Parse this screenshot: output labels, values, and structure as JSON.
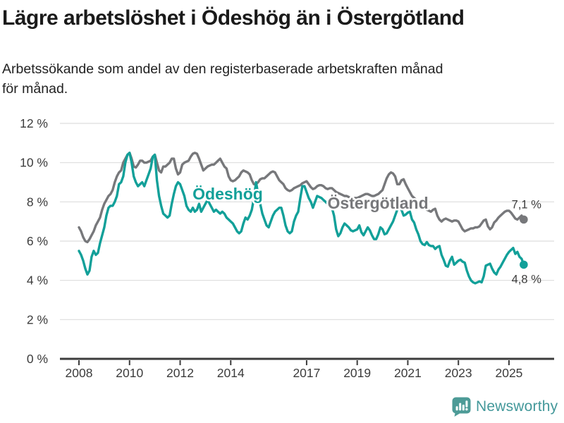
{
  "header": {
    "title": "Lägre arbetslöshet i Ödeshög än i Östergötland",
    "subtitle": "Arbetssökande som andel av den registerbaserade arbetskraften månad för månad."
  },
  "footer": {
    "brand": "Newsworthy",
    "brand_color": "#43989a",
    "logo_icon": "newsworthy-speech-bubble-bar-chart-icon"
  },
  "chart_data": {
    "type": "line",
    "title": "Lägre arbetslöshet i Ödeshög än i Östergötland",
    "subtitle": "Arbetssökande som andel av den registerbaserade arbetskraften månad för månad.",
    "unit": "%",
    "frequency": "monthly",
    "x_start_year": 2008,
    "x_start_month": 1,
    "x_end_label": "aug 2025",
    "grid": true,
    "ylim": [
      0,
      12
    ],
    "y_ticks": [
      0,
      2,
      4,
      6,
      8,
      10,
      12
    ],
    "y_tick_suffix": " %",
    "x_tick_years": [
      2008,
      2010,
      2012,
      2014,
      2017,
      2019,
      2021,
      2023,
      2025
    ],
    "colors": {
      "grid": "#dddddd",
      "axis": "#3c3c3c",
      "tick_text": "#3c3c3c",
      "value_label_text": "#3c3c3c"
    },
    "series": [
      {
        "name": "Östergötland",
        "slug": "ostergotland",
        "color": "#77787b",
        "end_label": "7,1 %",
        "final_value": 7.1,
        "end_label_position": "above",
        "values": [
          6.7,
          6.5,
          6.2,
          6.0,
          5.95,
          6.1,
          6.3,
          6.5,
          6.8,
          7.0,
          7.2,
          7.6,
          7.9,
          8.1,
          8.3,
          8.4,
          8.6,
          9.0,
          9.3,
          9.5,
          9.6,
          10.0,
          10.2,
          10.4,
          10.5,
          10.2,
          9.8,
          9.75,
          9.9,
          10.1,
          10.1,
          10.0,
          10.0,
          10.05,
          10.1,
          10.3,
          10.4,
          10.0,
          9.6,
          9.5,
          9.8,
          9.8,
          9.9,
          10.0,
          10.2,
          10.2,
          9.7,
          9.4,
          9.5,
          9.9,
          10.0,
          10.05,
          10.1,
          10.3,
          10.45,
          10.5,
          10.45,
          10.2,
          9.9,
          9.6,
          9.7,
          9.8,
          9.85,
          9.9,
          9.9,
          10.0,
          10.1,
          10.2,
          10.0,
          9.8,
          9.7,
          9.3,
          9.1,
          9.05,
          9.1,
          9.2,
          9.3,
          9.5,
          9.6,
          9.55,
          9.5,
          9.4,
          9.1,
          8.9,
          8.9,
          9.0,
          9.15,
          9.2,
          9.2,
          9.3,
          9.4,
          9.5,
          9.55,
          9.5,
          9.3,
          9.1,
          9.0,
          8.9,
          8.7,
          8.6,
          8.55,
          8.6,
          8.7,
          8.75,
          8.8,
          8.85,
          8.95,
          9.0,
          9.05,
          8.9,
          8.75,
          8.65,
          8.7,
          8.8,
          8.85,
          8.85,
          8.8,
          8.7,
          8.65,
          8.7,
          8.7,
          8.6,
          8.5,
          8.45,
          8.4,
          8.35,
          8.3,
          8.3,
          8.25,
          8.2,
          8.2,
          8.2,
          8.2,
          8.25,
          8.3,
          8.35,
          8.4,
          8.4,
          8.35,
          8.3,
          8.3,
          8.35,
          8.4,
          8.5,
          8.6,
          8.9,
          9.2,
          9.4,
          9.5,
          9.45,
          9.3,
          8.9,
          8.9,
          9.1,
          9.15,
          8.9,
          8.7,
          8.5,
          8.3,
          8.2,
          8.1,
          8.0,
          7.9,
          7.8,
          7.7,
          7.6,
          7.55,
          7.5,
          7.6,
          7.65,
          7.3,
          7.1,
          7.0,
          7.1,
          7.15,
          7.1,
          7.05,
          7.0,
          7.05,
          7.05,
          7.0,
          6.8,
          6.6,
          6.5,
          6.55,
          6.6,
          6.65,
          6.65,
          6.7,
          6.7,
          6.75,
          6.9,
          7.05,
          7.1,
          6.75,
          6.6,
          6.7,
          6.95,
          7.05,
          7.2,
          7.3,
          7.4,
          7.5,
          7.55,
          7.55,
          7.45,
          7.3,
          7.15,
          7.1,
          7.2,
          7.3,
          7.1
        ]
      },
      {
        "name": "Ödeshög",
        "slug": "odeshog",
        "color": "#12a099",
        "end_label": "4,8 %",
        "final_value": 4.8,
        "end_label_position": "below",
        "values": [
          5.5,
          5.3,
          5.0,
          4.6,
          4.3,
          4.5,
          5.2,
          5.5,
          5.3,
          5.4,
          5.9,
          6.3,
          6.7,
          7.3,
          7.7,
          7.8,
          7.8,
          8.0,
          8.3,
          8.9,
          9.0,
          9.3,
          10.0,
          10.4,
          10.5,
          10.0,
          9.3,
          9.0,
          8.8,
          8.9,
          9.0,
          8.8,
          9.1,
          9.4,
          9.7,
          10.3,
          10.4,
          9.1,
          8.3,
          7.8,
          7.4,
          7.3,
          7.2,
          7.3,
          7.9,
          8.4,
          8.8,
          9.0,
          8.9,
          8.6,
          8.3,
          7.8,
          7.6,
          7.5,
          7.7,
          7.5,
          7.6,
          7.9,
          7.5,
          7.7,
          7.9,
          8.1,
          7.9,
          7.7,
          7.5,
          7.6,
          7.5,
          7.4,
          7.5,
          7.4,
          7.2,
          7.1,
          7.0,
          6.9,
          6.7,
          6.5,
          6.4,
          6.5,
          6.9,
          7.2,
          7.1,
          7.3,
          7.6,
          8.2,
          9.0,
          8.4,
          7.9,
          7.4,
          7.1,
          6.8,
          6.7,
          7.0,
          7.3,
          7.5,
          7.6,
          7.7,
          7.7,
          7.3,
          6.8,
          6.5,
          6.4,
          6.5,
          7.0,
          7.3,
          7.5,
          8.2,
          8.8,
          8.8,
          8.5,
          8.2,
          8.0,
          7.7,
          8.0,
          8.3,
          8.25,
          8.2,
          8.1,
          8.0,
          7.9,
          7.8,
          7.7,
          7.3,
          6.6,
          6.25,
          6.4,
          6.7,
          6.9,
          6.8,
          6.7,
          6.55,
          6.5,
          6.55,
          6.6,
          6.8,
          6.45,
          6.3,
          6.5,
          6.7,
          6.55,
          6.3,
          6.1,
          6.1,
          6.35,
          6.7,
          6.6,
          6.35,
          6.4,
          6.6,
          6.8,
          7.0,
          7.3,
          7.6,
          7.8,
          7.6,
          7.3,
          7.35,
          7.45,
          7.5,
          7.1,
          6.95,
          6.6,
          6.35,
          6.0,
          5.85,
          5.8,
          5.95,
          5.8,
          5.75,
          5.75,
          5.6,
          5.7,
          5.75,
          5.3,
          5.05,
          4.75,
          4.7,
          5.0,
          5.2,
          4.8,
          4.9,
          5.0,
          5.05,
          4.95,
          4.9,
          4.5,
          4.2,
          4.0,
          3.9,
          3.85,
          3.9,
          3.95,
          3.9,
          4.2,
          4.75,
          4.8,
          4.85,
          4.6,
          4.4,
          4.3,
          4.55,
          4.7,
          4.9,
          5.1,
          5.3,
          5.45,
          5.55,
          5.65,
          5.35,
          5.45,
          5.2,
          5.1,
          4.8
        ]
      }
    ],
    "series_labels": [
      {
        "text": "Ödeshög",
        "slug": "odeshog",
        "color": "#12a099",
        "x_year": 2013.88,
        "y_pct": 8.12
      },
      {
        "text": "Östergötland",
        "slug": "ostergotland",
        "color": "#77787b",
        "x_year": 2019.82,
        "y_pct": 7.65
      }
    ],
    "legend_position": "inline-labels"
  }
}
